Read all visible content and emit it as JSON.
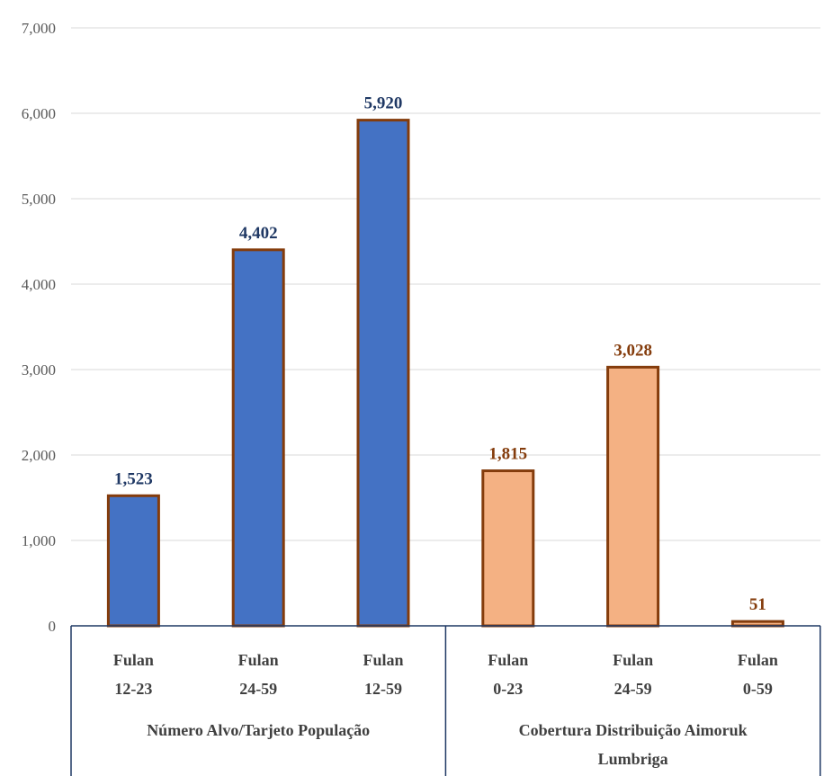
{
  "chart_data": {
    "type": "bar",
    "ylim": [
      0,
      7000
    ],
    "y_ticks": [
      "0",
      "1,000",
      "2,000",
      "3,000",
      "4,000",
      "5,000",
      "6,000",
      "7,000"
    ],
    "grid": true,
    "bar_outline_color": "#843C0C",
    "groups": [
      {
        "label": "Número Alvo/Tarjeto População",
        "color": "#4472C4",
        "label_color": "#1F3864",
        "categories": [
          {
            "line1": "Fulan",
            "line2": "12-23"
          },
          {
            "line1": "Fulan",
            "line2": "24-59"
          },
          {
            "line1": "Fulan",
            "line2": "12-59"
          }
        ],
        "values": [
          1523,
          4402,
          5920
        ],
        "value_labels": [
          "1,523",
          "4,402",
          "5,920"
        ]
      },
      {
        "label_line1": "Cobertura Distribuição Aimoruk",
        "label_line2": "Lumbriga",
        "color": "#F4B183",
        "label_color": "#843C0C",
        "categories": [
          {
            "line1": "Fulan",
            "line2": "0-23"
          },
          {
            "line1": "Fulan",
            "line2": "24-59"
          },
          {
            "line1": "Fulan",
            "line2": "0-59"
          }
        ],
        "values": [
          1815,
          3028,
          51
        ],
        "value_labels": [
          "1,815",
          "3,028",
          "51"
        ]
      }
    ]
  }
}
